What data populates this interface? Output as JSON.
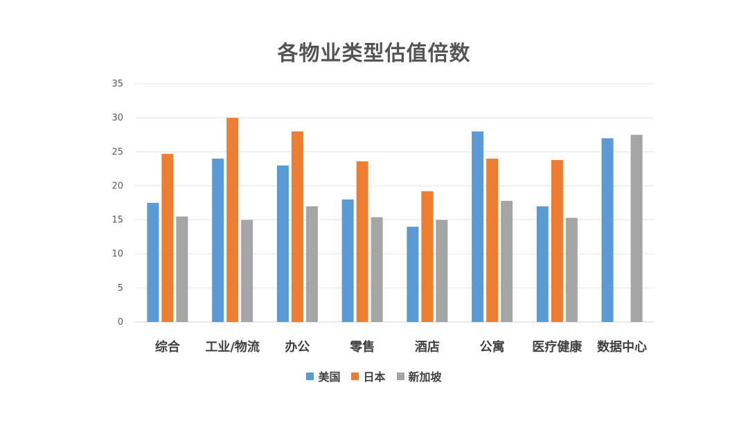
{
  "chart_data": {
    "type": "bar",
    "title": "各物业类型估值倍数",
    "xlabel": "",
    "ylabel": "",
    "categories": [
      "综合",
      "工业/物流",
      "办公",
      "零售",
      "酒店",
      "公寓",
      "医疗健康",
      "数据中心"
    ],
    "series": [
      {
        "name": "美国",
        "color": "#5B9BD5",
        "values": [
          17.5,
          24,
          23,
          18,
          14,
          28,
          17,
          27
        ]
      },
      {
        "name": "日本",
        "color": "#ED7D31",
        "values": [
          24.7,
          30,
          28,
          23.6,
          19.2,
          24,
          23.8,
          null
        ]
      },
      {
        "name": "新加坡",
        "color": "#A5A5A5",
        "values": [
          15.5,
          15,
          17,
          15.4,
          15,
          17.8,
          15.3,
          27.5
        ]
      }
    ],
    "ylim": [
      0,
      35
    ],
    "yticks": [
      0,
      5,
      10,
      15,
      20,
      25,
      30,
      35
    ],
    "grid": true,
    "legend_position": "bottom"
  }
}
